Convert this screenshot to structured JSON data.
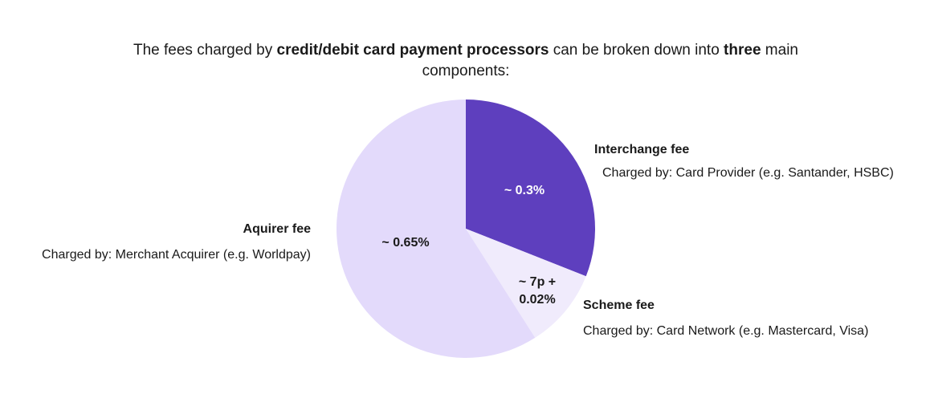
{
  "chart_data": {
    "type": "pie",
    "title_parts": [
      {
        "text": "The fees charged by ",
        "bold": false
      },
      {
        "text": "credit/debit card payment processors",
        "bold": true
      },
      {
        "text": " can be broken down into ",
        "bold": false
      },
      {
        "text": "three",
        "bold": true
      },
      {
        "text": " main components:",
        "bold": false
      }
    ],
    "categories": [
      "Interchange fee",
      "Scheme fee",
      "Aquirer fee"
    ],
    "descriptions": [
      "Charged by: Card Provider (e.g. Santander, HSBC)",
      "Charged by: Card Network (e.g. Mastercard, Visa)",
      "Charged by: Merchant Acquirer (e.g. Worldpay)"
    ],
    "slice_labels": [
      [
        "~ 0.3%"
      ],
      [
        "~ 7p +",
        "0.02%"
      ],
      [
        "~ 0.65%"
      ]
    ],
    "values": [
      31,
      10,
      59
    ],
    "colors": [
      "#5e3fbe",
      "#f0ebfc",
      "#e3dafb"
    ],
    "label_colors": [
      "#ffffff",
      "#1a1a1a",
      "#1a1a1a"
    ]
  }
}
